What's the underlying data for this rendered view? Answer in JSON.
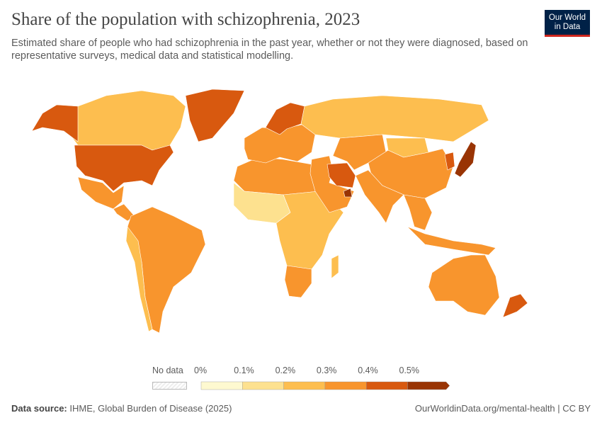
{
  "header": {
    "title": "Share of the population with schizophrenia, 2023",
    "subtitle": "Estimated share of people who had schizophrenia in the past year, whether or not they were diagnosed, based on representative surveys, medical data and statistical modelling.",
    "logo": "Our World in Data"
  },
  "legend": {
    "no_data": "No data",
    "ticks": [
      "0%",
      "0.1%",
      "0.2%",
      "0.3%",
      "0.4%",
      "0.5%"
    ],
    "colors": [
      "#fef9d0",
      "#fde18f",
      "#fdbe4f",
      "#f8952d",
      "#d8590f",
      "#993404"
    ],
    "no_data_color": "#eeeeee"
  },
  "chart_data": {
    "type": "choropleth",
    "year": 2023,
    "unit": "%",
    "bins": [
      0,
      0.1,
      0.2,
      0.3,
      0.4,
      0.5
    ],
    "regions": [
      {
        "name": "Canada",
        "bin": 2
      },
      {
        "name": "Alaska",
        "bin": 4
      },
      {
        "name": "United States",
        "bin": 4
      },
      {
        "name": "Greenland",
        "bin": 4
      },
      {
        "name": "Mexico",
        "bin": 3
      },
      {
        "name": "Central America",
        "bin": 3
      },
      {
        "name": "South America",
        "bin": 3
      },
      {
        "name": "Andes",
        "bin": 2
      },
      {
        "name": "North Africa",
        "bin": 3
      },
      {
        "name": "West Africa",
        "bin": 1
      },
      {
        "name": "Central & East Africa",
        "bin": 2
      },
      {
        "name": "South Africa",
        "bin": 3
      },
      {
        "name": "Madagascar",
        "bin": 2
      },
      {
        "name": "Europe",
        "bin": 3
      },
      {
        "name": "Scandinavia",
        "bin": 4
      },
      {
        "name": "Russia",
        "bin": 2
      },
      {
        "name": "Middle East",
        "bin": 3
      },
      {
        "name": "Iran",
        "bin": 4
      },
      {
        "name": "UAE",
        "bin": 5
      },
      {
        "name": "Central Asia",
        "bin": 3
      },
      {
        "name": "China",
        "bin": 3
      },
      {
        "name": "Mongolia",
        "bin": 2
      },
      {
        "name": "India",
        "bin": 3
      },
      {
        "name": "Southeast Asia",
        "bin": 3
      },
      {
        "name": "Indonesia",
        "bin": 3
      },
      {
        "name": "Japan",
        "bin": 5
      },
      {
        "name": "Korea",
        "bin": 4
      },
      {
        "name": "Australia",
        "bin": 3
      },
      {
        "name": "New Zealand",
        "bin": 4
      }
    ]
  },
  "footer": {
    "source_label": "Data source:",
    "source": "IHME, Global Burden of Disease (2025)",
    "link": "OurWorldinData.org/mental-health | CC BY"
  }
}
